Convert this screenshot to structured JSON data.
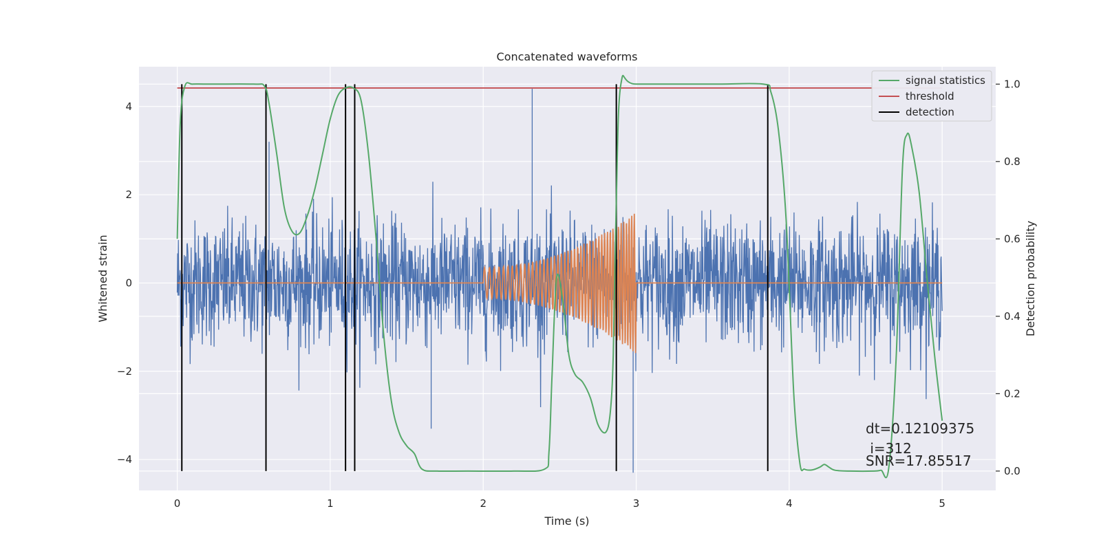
{
  "chart_data": {
    "type": "line",
    "title": "Concatenated waveforms",
    "xlabel": "Time (s)",
    "ylabel_left": "Whitened strain",
    "ylabel_right": "Detection probability",
    "xlim": [
      -0.25,
      5.35
    ],
    "ylim_left": [
      -4.7,
      4.9
    ],
    "ylim_right": [
      -0.05,
      1.045
    ],
    "x_ticks": [
      0,
      1,
      2,
      3,
      4,
      5
    ],
    "x_tick_labels": [
      "0",
      "1",
      "2",
      "3",
      "4",
      "5"
    ],
    "y_left_ticks": [
      -4,
      -2,
      0,
      2,
      4
    ],
    "y_left_tick_labels": [
      "−4",
      "−2",
      "0",
      "2",
      "4"
    ],
    "y_right_ticks": [
      0.0,
      0.2,
      0.4,
      0.6,
      0.8,
      1.0
    ],
    "y_right_tick_labels": [
      "0.0",
      "0.2",
      "0.4",
      "0.6",
      "0.8",
      "1.0"
    ],
    "grid": true,
    "legend_position": "top-right",
    "background_color": "#eaeaf2",
    "series": [
      {
        "key": "noise",
        "axis": "left",
        "color": "#4c72b0",
        "x_range": [
          0,
          5
        ],
        "y_max": 4.4,
        "y_min": -4.3,
        "typical_amplitude": 0.7
      },
      {
        "key": "chirp",
        "axis": "left",
        "color": "#dd8452",
        "x_range": [
          0,
          5
        ],
        "chirp_start": 2.0,
        "chirp_end": 3.0,
        "amp_start": 0.35,
        "amp_end": 1.6,
        "freq_start": 30,
        "freq_end": 60
      },
      {
        "name": "signal statistics",
        "axis": "right",
        "color": "#55a868",
        "x": [
          0.0,
          0.02,
          0.05,
          0.1,
          0.2,
          0.5,
          0.57,
          0.6,
          0.65,
          0.7,
          0.75,
          0.8,
          0.85,
          0.9,
          0.95,
          1.0,
          1.05,
          1.1,
          1.15,
          1.2,
          1.25,
          1.3,
          1.35,
          1.4,
          1.45,
          1.5,
          1.55,
          1.6,
          1.7,
          1.9,
          2.2,
          2.4,
          2.43,
          2.45,
          2.48,
          2.52,
          2.56,
          2.6,
          2.65,
          2.7,
          2.75,
          2.8,
          2.83,
          2.85,
          2.87,
          2.9,
          3.0,
          3.5,
          3.83,
          3.88,
          3.93,
          3.98,
          4.03,
          4.07,
          4.1,
          4.15,
          4.2,
          4.23,
          4.26,
          4.3,
          4.4,
          4.55,
          4.6,
          4.65,
          4.7,
          4.74,
          4.77,
          4.8,
          4.85,
          4.9,
          4.95,
          5.0
        ],
        "values": [
          0.6,
          0.9,
          0.995,
          1.0,
          1.0,
          1.0,
          0.995,
          0.95,
          0.82,
          0.68,
          0.62,
          0.615,
          0.66,
          0.73,
          0.82,
          0.91,
          0.97,
          0.99,
          0.99,
          0.96,
          0.82,
          0.6,
          0.35,
          0.18,
          0.1,
          0.065,
          0.045,
          0.005,
          0.0,
          0.0,
          0.0,
          0.005,
          0.05,
          0.25,
          0.5,
          0.44,
          0.3,
          0.25,
          0.23,
          0.19,
          0.12,
          0.1,
          0.15,
          0.3,
          0.7,
          1.0,
          1.0,
          1.0,
          1.0,
          0.98,
          0.88,
          0.65,
          0.2,
          0.02,
          0.005,
          0.003,
          0.01,
          0.017,
          0.01,
          0.002,
          0.0,
          0.0,
          0.002,
          0.006,
          0.3,
          0.78,
          0.87,
          0.84,
          0.72,
          0.5,
          0.3,
          0.13
        ]
      },
      {
        "name": "threshold",
        "axis": "right",
        "color": "#c44e52",
        "x": [
          0,
          5
        ],
        "values": [
          0.99,
          0.99
        ]
      }
    ],
    "detections": {
      "name": "detection",
      "color": "#000000",
      "x": [
        0.03,
        0.58,
        1.1,
        1.16,
        2.87,
        3.86
      ],
      "y_range": [
        0.0,
        1.0
      ]
    },
    "annotations": [
      "dt=0.12109375",
      " i=312",
      "SNR=17.85517"
    ]
  }
}
